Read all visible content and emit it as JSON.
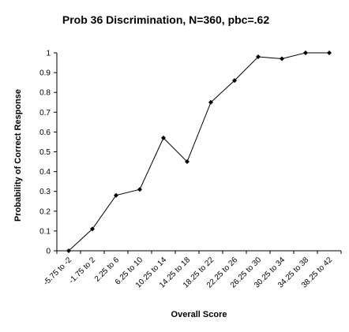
{
  "chart_data": {
    "type": "line",
    "title": "Prob 36 Discrimination, N=360, pbc=.62",
    "xlabel": "Overall Score",
    "ylabel": "Probability of Correct Response",
    "ylim": [
      0,
      1
    ],
    "y_ticks": [
      "0",
      "0.1",
      "0.2",
      "0.3",
      "0.4",
      "0.5",
      "0.6",
      "0.7",
      "0.8",
      "0.9",
      "1"
    ],
    "grid": false,
    "legend": "none",
    "categories": [
      "-5.75 to -2",
      "-1.75 to 2",
      "2.25 to 6",
      "6.25 to 10",
      "10.25 to 14",
      "14.25 to 18",
      "18.25 to 22",
      "22.25 to 26",
      "26.25 to 30",
      "30.25 to 34",
      "34.25 to 38",
      "38.25 to 42"
    ],
    "values": [
      0.0,
      0.11,
      0.28,
      0.31,
      0.57,
      0.45,
      0.75,
      0.86,
      0.98,
      0.97,
      1.0,
      1.0
    ],
    "colors": {
      "line": "#000000",
      "marker": "#000000",
      "axis": "#000000",
      "background": "#ffffff"
    }
  }
}
